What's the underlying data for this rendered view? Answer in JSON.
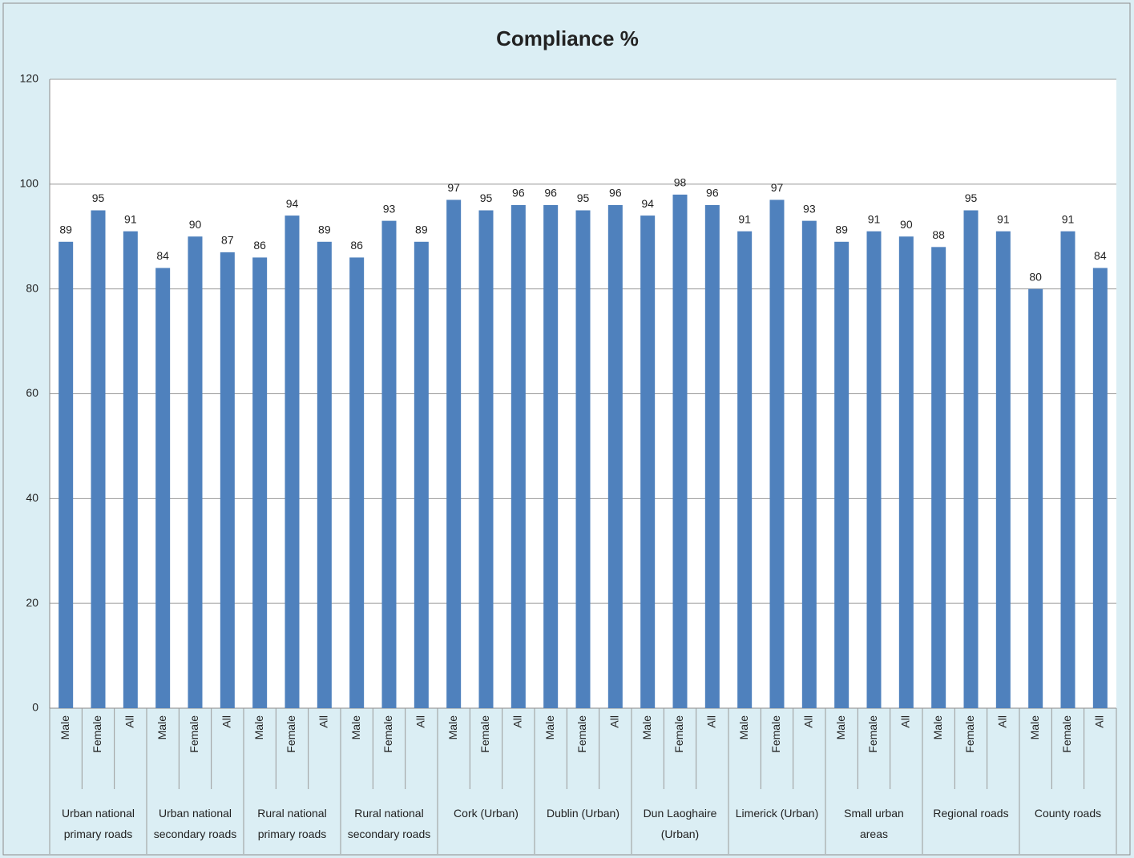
{
  "chart_data": {
    "type": "bar",
    "title": "Compliance %",
    "color": "#4f81bd",
    "ylim": [
      0,
      120
    ],
    "yticks": [
      0,
      20,
      40,
      60,
      80,
      100,
      120
    ],
    "grid": true,
    "groups": [
      {
        "name": "Urban national primary roads",
        "categories": [
          "Male",
          "Female",
          "All"
        ],
        "values": [
          89,
          95,
          91
        ]
      },
      {
        "name": "Urban national secondary roads",
        "categories": [
          "Male",
          "Female",
          "All"
        ],
        "values": [
          84,
          90,
          87
        ]
      },
      {
        "name": "Rural national primary roads",
        "categories": [
          "Male",
          "Female",
          "All"
        ],
        "values": [
          86,
          94,
          89
        ]
      },
      {
        "name": "Rural national secondary roads",
        "categories": [
          "Male",
          "Female",
          "All"
        ],
        "values": [
          86,
          93,
          89
        ]
      },
      {
        "name": "Cork (Urban)",
        "categories": [
          "Male",
          "Female",
          "All"
        ],
        "values": [
          97,
          95,
          96
        ]
      },
      {
        "name": "Dublin (Urban)",
        "categories": [
          "Male",
          "Female",
          "All"
        ],
        "values": [
          96,
          95,
          96
        ]
      },
      {
        "name": "Dun Laoghaire (Urban)",
        "categories": [
          "Male",
          "Female",
          "All"
        ],
        "values": [
          94,
          98,
          96
        ]
      },
      {
        "name": "Limerick (Urban)",
        "categories": [
          "Male",
          "Female",
          "All"
        ],
        "values": [
          91,
          97,
          93
        ]
      },
      {
        "name": "Small urban areas",
        "categories": [
          "Male",
          "Female",
          "All"
        ],
        "values": [
          89,
          91,
          90
        ]
      },
      {
        "name": "Regional roads",
        "categories": [
          "Male",
          "Female",
          "All"
        ],
        "values": [
          88,
          95,
          91
        ]
      },
      {
        "name": "County roads",
        "categories": [
          "Male",
          "Female",
          "All"
        ],
        "values": [
          80,
          91,
          84
        ]
      }
    ]
  }
}
